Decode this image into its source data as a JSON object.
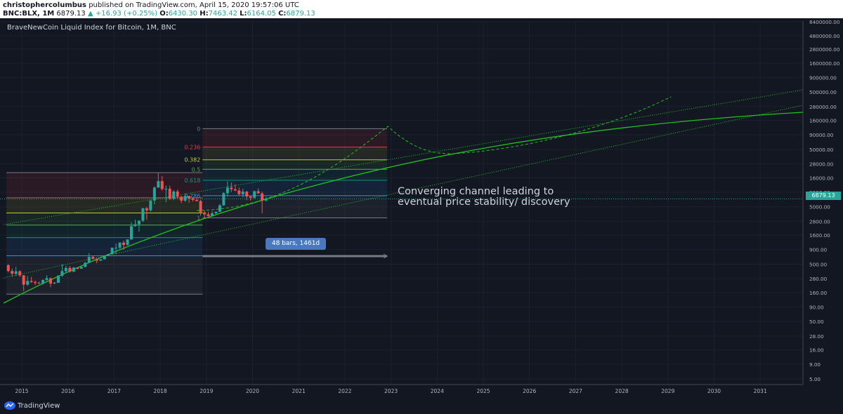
{
  "header": {
    "author": "christophercolumbus",
    "published": "published on TradingView.com, April 15, 2020 19:57:06 UTC",
    "symbol": "BNC:BLX, 1M",
    "last": "6879.13",
    "change": "+16.93 (+0.25%)",
    "open_label": "O:",
    "open": "6430.30",
    "high_label": "H:",
    "high": "7463.42",
    "low_label": "L:",
    "low": "6164.05",
    "close_label": "C:",
    "close": "6879.13"
  },
  "chart_title": "BraveNewCoin Liquid Index for Bitcoin, 1M, BNC",
  "annotation": {
    "line1": "Converging channel leading to",
    "line2": "eventual price stability/ discovery"
  },
  "price_tag": "6879.13",
  "range_label": "48 bars, 1461d",
  "footer_logo": "TradingView",
  "chart_data": {
    "type": "candlestick",
    "title": "BraveNewCoin Liquid Index for Bitcoin, 1M, BNC",
    "y_scale": "log",
    "ylim": [
      4,
      8500000
    ],
    "xlim": [
      "2014-09",
      "2031-12"
    ],
    "y_ticks": [
      "8400000.00",
      "4800000.00",
      "2800000.00",
      "1600000.00",
      "900000.00",
      "500000.00",
      "280000.00",
      "160000.00",
      "90000.00",
      "50000.00",
      "28000.00",
      "16000.00",
      "9000.00",
      "5000.00",
      "2800.00",
      "1600.00",
      "900.00",
      "500.00",
      "280.00",
      "160.00",
      "90.00",
      "50.00",
      "28.00",
      "16.00",
      "9.00",
      "5.00"
    ],
    "x_ticks": [
      "2015",
      "2016",
      "2017",
      "2018",
      "2019",
      "2020",
      "2021",
      "2022",
      "2023",
      "2024",
      "2025",
      "2026",
      "2027",
      "2028",
      "2029",
      "2030",
      "2031"
    ],
    "candles": [
      {
        "t": "2014-09",
        "o": 480,
        "h": 500,
        "l": 360,
        "c": 380
      },
      {
        "t": "2014-10",
        "o": 380,
        "h": 420,
        "l": 300,
        "c": 340
      },
      {
        "t": "2014-11",
        "o": 340,
        "h": 450,
        "l": 310,
        "c": 375
      },
      {
        "t": "2014-12",
        "o": 375,
        "h": 390,
        "l": 300,
        "c": 320
      },
      {
        "t": "2015-01",
        "o": 320,
        "h": 320,
        "l": 170,
        "c": 220
      },
      {
        "t": "2015-02",
        "o": 220,
        "h": 310,
        "l": 210,
        "c": 255
      },
      {
        "t": "2015-03",
        "o": 255,
        "h": 300,
        "l": 235,
        "c": 245
      },
      {
        "t": "2015-04",
        "o": 245,
        "h": 260,
        "l": 215,
        "c": 235
      },
      {
        "t": "2015-05",
        "o": 235,
        "h": 250,
        "l": 225,
        "c": 230
      },
      {
        "t": "2015-06",
        "o": 230,
        "h": 270,
        "l": 220,
        "c": 265
      },
      {
        "t": "2015-07",
        "o": 265,
        "h": 320,
        "l": 255,
        "c": 285
      },
      {
        "t": "2015-08",
        "o": 285,
        "h": 290,
        "l": 200,
        "c": 230
      },
      {
        "t": "2015-09",
        "o": 230,
        "h": 245,
        "l": 225,
        "c": 237
      },
      {
        "t": "2015-10",
        "o": 237,
        "h": 320,
        "l": 235,
        "c": 315
      },
      {
        "t": "2015-11",
        "o": 315,
        "h": 500,
        "l": 300,
        "c": 378
      },
      {
        "t": "2015-12",
        "o": 378,
        "h": 465,
        "l": 350,
        "c": 430
      },
      {
        "t": "2016-01",
        "o": 430,
        "h": 465,
        "l": 355,
        "c": 370
      },
      {
        "t": "2016-02",
        "o": 370,
        "h": 445,
        "l": 365,
        "c": 437
      },
      {
        "t": "2016-03",
        "o": 437,
        "h": 440,
        "l": 405,
        "c": 416
      },
      {
        "t": "2016-04",
        "o": 416,
        "h": 465,
        "l": 415,
        "c": 448
      },
      {
        "t": "2016-05",
        "o": 448,
        "h": 550,
        "l": 440,
        "c": 530
      },
      {
        "t": "2016-06",
        "o": 530,
        "h": 780,
        "l": 520,
        "c": 670
      },
      {
        "t": "2016-07",
        "o": 670,
        "h": 700,
        "l": 600,
        "c": 625
      },
      {
        "t": "2016-08",
        "o": 625,
        "h": 630,
        "l": 520,
        "c": 575
      },
      {
        "t": "2016-09",
        "o": 575,
        "h": 610,
        "l": 570,
        "c": 608
      },
      {
        "t": "2016-10",
        "o": 608,
        "h": 720,
        "l": 605,
        "c": 700
      },
      {
        "t": "2016-11",
        "o": 700,
        "h": 750,
        "l": 690,
        "c": 745
      },
      {
        "t": "2016-12",
        "o": 745,
        "h": 980,
        "l": 740,
        "c": 965
      },
      {
        "t": "2017-01",
        "o": 965,
        "h": 1150,
        "l": 750,
        "c": 970
      },
      {
        "t": "2017-02",
        "o": 970,
        "h": 1200,
        "l": 920,
        "c": 1190
      },
      {
        "t": "2017-03",
        "o": 1190,
        "h": 1290,
        "l": 890,
        "c": 1080
      },
      {
        "t": "2017-04",
        "o": 1080,
        "h": 1350,
        "l": 1060,
        "c": 1350
      },
      {
        "t": "2017-05",
        "o": 1350,
        "h": 2700,
        "l": 1330,
        "c": 2300
      },
      {
        "t": "2017-06",
        "o": 2300,
        "h": 2980,
        "l": 2250,
        "c": 2480
      },
      {
        "t": "2017-07",
        "o": 2480,
        "h": 2920,
        "l": 1850,
        "c": 2860
      },
      {
        "t": "2017-08",
        "o": 2860,
        "h": 4750,
        "l": 2700,
        "c": 4720
      },
      {
        "t": "2017-09",
        "o": 4720,
        "h": 4970,
        "l": 2970,
        "c": 4340
      },
      {
        "t": "2017-10",
        "o": 4340,
        "h": 6450,
        "l": 4150,
        "c": 6440
      },
      {
        "t": "2017-11",
        "o": 6440,
        "h": 11300,
        "l": 5500,
        "c": 10800
      },
      {
        "t": "2017-12",
        "o": 10800,
        "h": 19700,
        "l": 10700,
        "c": 14000
      },
      {
        "t": "2018-01",
        "o": 14000,
        "h": 17200,
        "l": 9500,
        "c": 10200
      },
      {
        "t": "2018-02",
        "o": 10200,
        "h": 11800,
        "l": 6000,
        "c": 10300
      },
      {
        "t": "2018-03",
        "o": 10300,
        "h": 11700,
        "l": 6600,
        "c": 6900
      },
      {
        "t": "2018-04",
        "o": 6900,
        "h": 9800,
        "l": 6500,
        "c": 9250
      },
      {
        "t": "2018-05",
        "o": 9250,
        "h": 10000,
        "l": 7000,
        "c": 7500
      },
      {
        "t": "2018-06",
        "o": 7500,
        "h": 7800,
        "l": 5800,
        "c": 6400
      },
      {
        "t": "2018-07",
        "o": 6400,
        "h": 8500,
        "l": 6100,
        "c": 7750
      },
      {
        "t": "2018-08",
        "o": 7750,
        "h": 7800,
        "l": 5900,
        "c": 7000
      },
      {
        "t": "2018-09",
        "o": 7000,
        "h": 7400,
        "l": 6200,
        "c": 6600
      },
      {
        "t": "2018-10",
        "o": 6600,
        "h": 7000,
        "l": 6200,
        "c": 6300
      },
      {
        "t": "2018-11",
        "o": 6300,
        "h": 6600,
        "l": 3500,
        "c": 4000
      },
      {
        "t": "2018-12",
        "o": 4000,
        "h": 4300,
        "l": 3150,
        "c": 3700
      },
      {
        "t": "2019-01",
        "o": 3700,
        "h": 4100,
        "l": 3400,
        "c": 3450
      },
      {
        "t": "2019-02",
        "o": 3450,
        "h": 4200,
        "l": 3400,
        "c": 3850
      },
      {
        "t": "2019-03",
        "o": 3850,
        "h": 4100,
        "l": 3750,
        "c": 4100
      },
      {
        "t": "2019-04",
        "o": 4100,
        "h": 5600,
        "l": 4050,
        "c": 5300
      },
      {
        "t": "2019-05",
        "o": 5300,
        "h": 9000,
        "l": 5200,
        "c": 8600
      },
      {
        "t": "2019-06",
        "o": 8600,
        "h": 13900,
        "l": 7500,
        "c": 10800
      },
      {
        "t": "2019-07",
        "o": 10800,
        "h": 13200,
        "l": 9100,
        "c": 10100
      },
      {
        "t": "2019-08",
        "o": 10100,
        "h": 12300,
        "l": 9400,
        "c": 9600
      },
      {
        "t": "2019-09",
        "o": 9600,
        "h": 10900,
        "l": 7800,
        "c": 8300
      },
      {
        "t": "2019-10",
        "o": 8300,
        "h": 10400,
        "l": 7300,
        "c": 9200
      },
      {
        "t": "2019-11",
        "o": 9200,
        "h": 9500,
        "l": 6500,
        "c": 7550
      },
      {
        "t": "2019-12",
        "o": 7550,
        "h": 7800,
        "l": 6400,
        "c": 7200
      },
      {
        "t": "2020-01",
        "o": 7200,
        "h": 9600,
        "l": 6900,
        "c": 9350
      },
      {
        "t": "2020-02",
        "o": 9350,
        "h": 10500,
        "l": 8500,
        "c": 8550
      },
      {
        "t": "2020-03",
        "o": 8550,
        "h": 9200,
        "l": 3850,
        "c": 6430
      },
      {
        "t": "2020-04",
        "o": 6430,
        "h": 7463.42,
        "l": 6164.05,
        "c": 6879.13
      }
    ],
    "fibonacci_left": {
      "levels": [
        {
          "ratio": "0",
          "price": 19700,
          "color": "#787b86"
        },
        {
          "ratio": "0.236",
          "price": 7200,
          "color": "#f23645"
        },
        {
          "ratio": "0.382",
          "price": 3900,
          "color": "#c0ca33"
        },
        {
          "ratio": "0.5",
          "price": 2400,
          "color": "#4caf50"
        },
        {
          "ratio": "0.618",
          "price": 1450,
          "color": "#089981"
        },
        {
          "ratio": "0.786",
          "price": 700,
          "color": "#2196f3"
        },
        {
          "ratio": "1",
          "price": 150,
          "color": "#787b86"
        }
      ],
      "from": "2014-09",
      "to": "2018-12"
    },
    "fibonacci_right": {
      "levels": [
        {
          "ratio": "0",
          "price": 115000,
          "color": "#787b86"
        },
        {
          "ratio": "0.236",
          "price": 55000,
          "color": "#f23645"
        },
        {
          "ratio": "0.382",
          "price": 33000,
          "color": "#c0ca33"
        },
        {
          "ratio": "0.5",
          "price": 22500,
          "color": "#4caf50"
        },
        {
          "ratio": "0.618",
          "price": 14500,
          "color": "#089981"
        },
        {
          "ratio": "0.786",
          "price": 7800,
          "color": "#2196f3"
        },
        {
          "ratio": "1",
          "price": 3200,
          "color": "#787b86"
        }
      ],
      "from": "2018-12",
      "to": "2022-12"
    },
    "colors": {
      "up": "#26a69a",
      "down": "#ef5350",
      "trend": "#1fc21f"
    }
  }
}
